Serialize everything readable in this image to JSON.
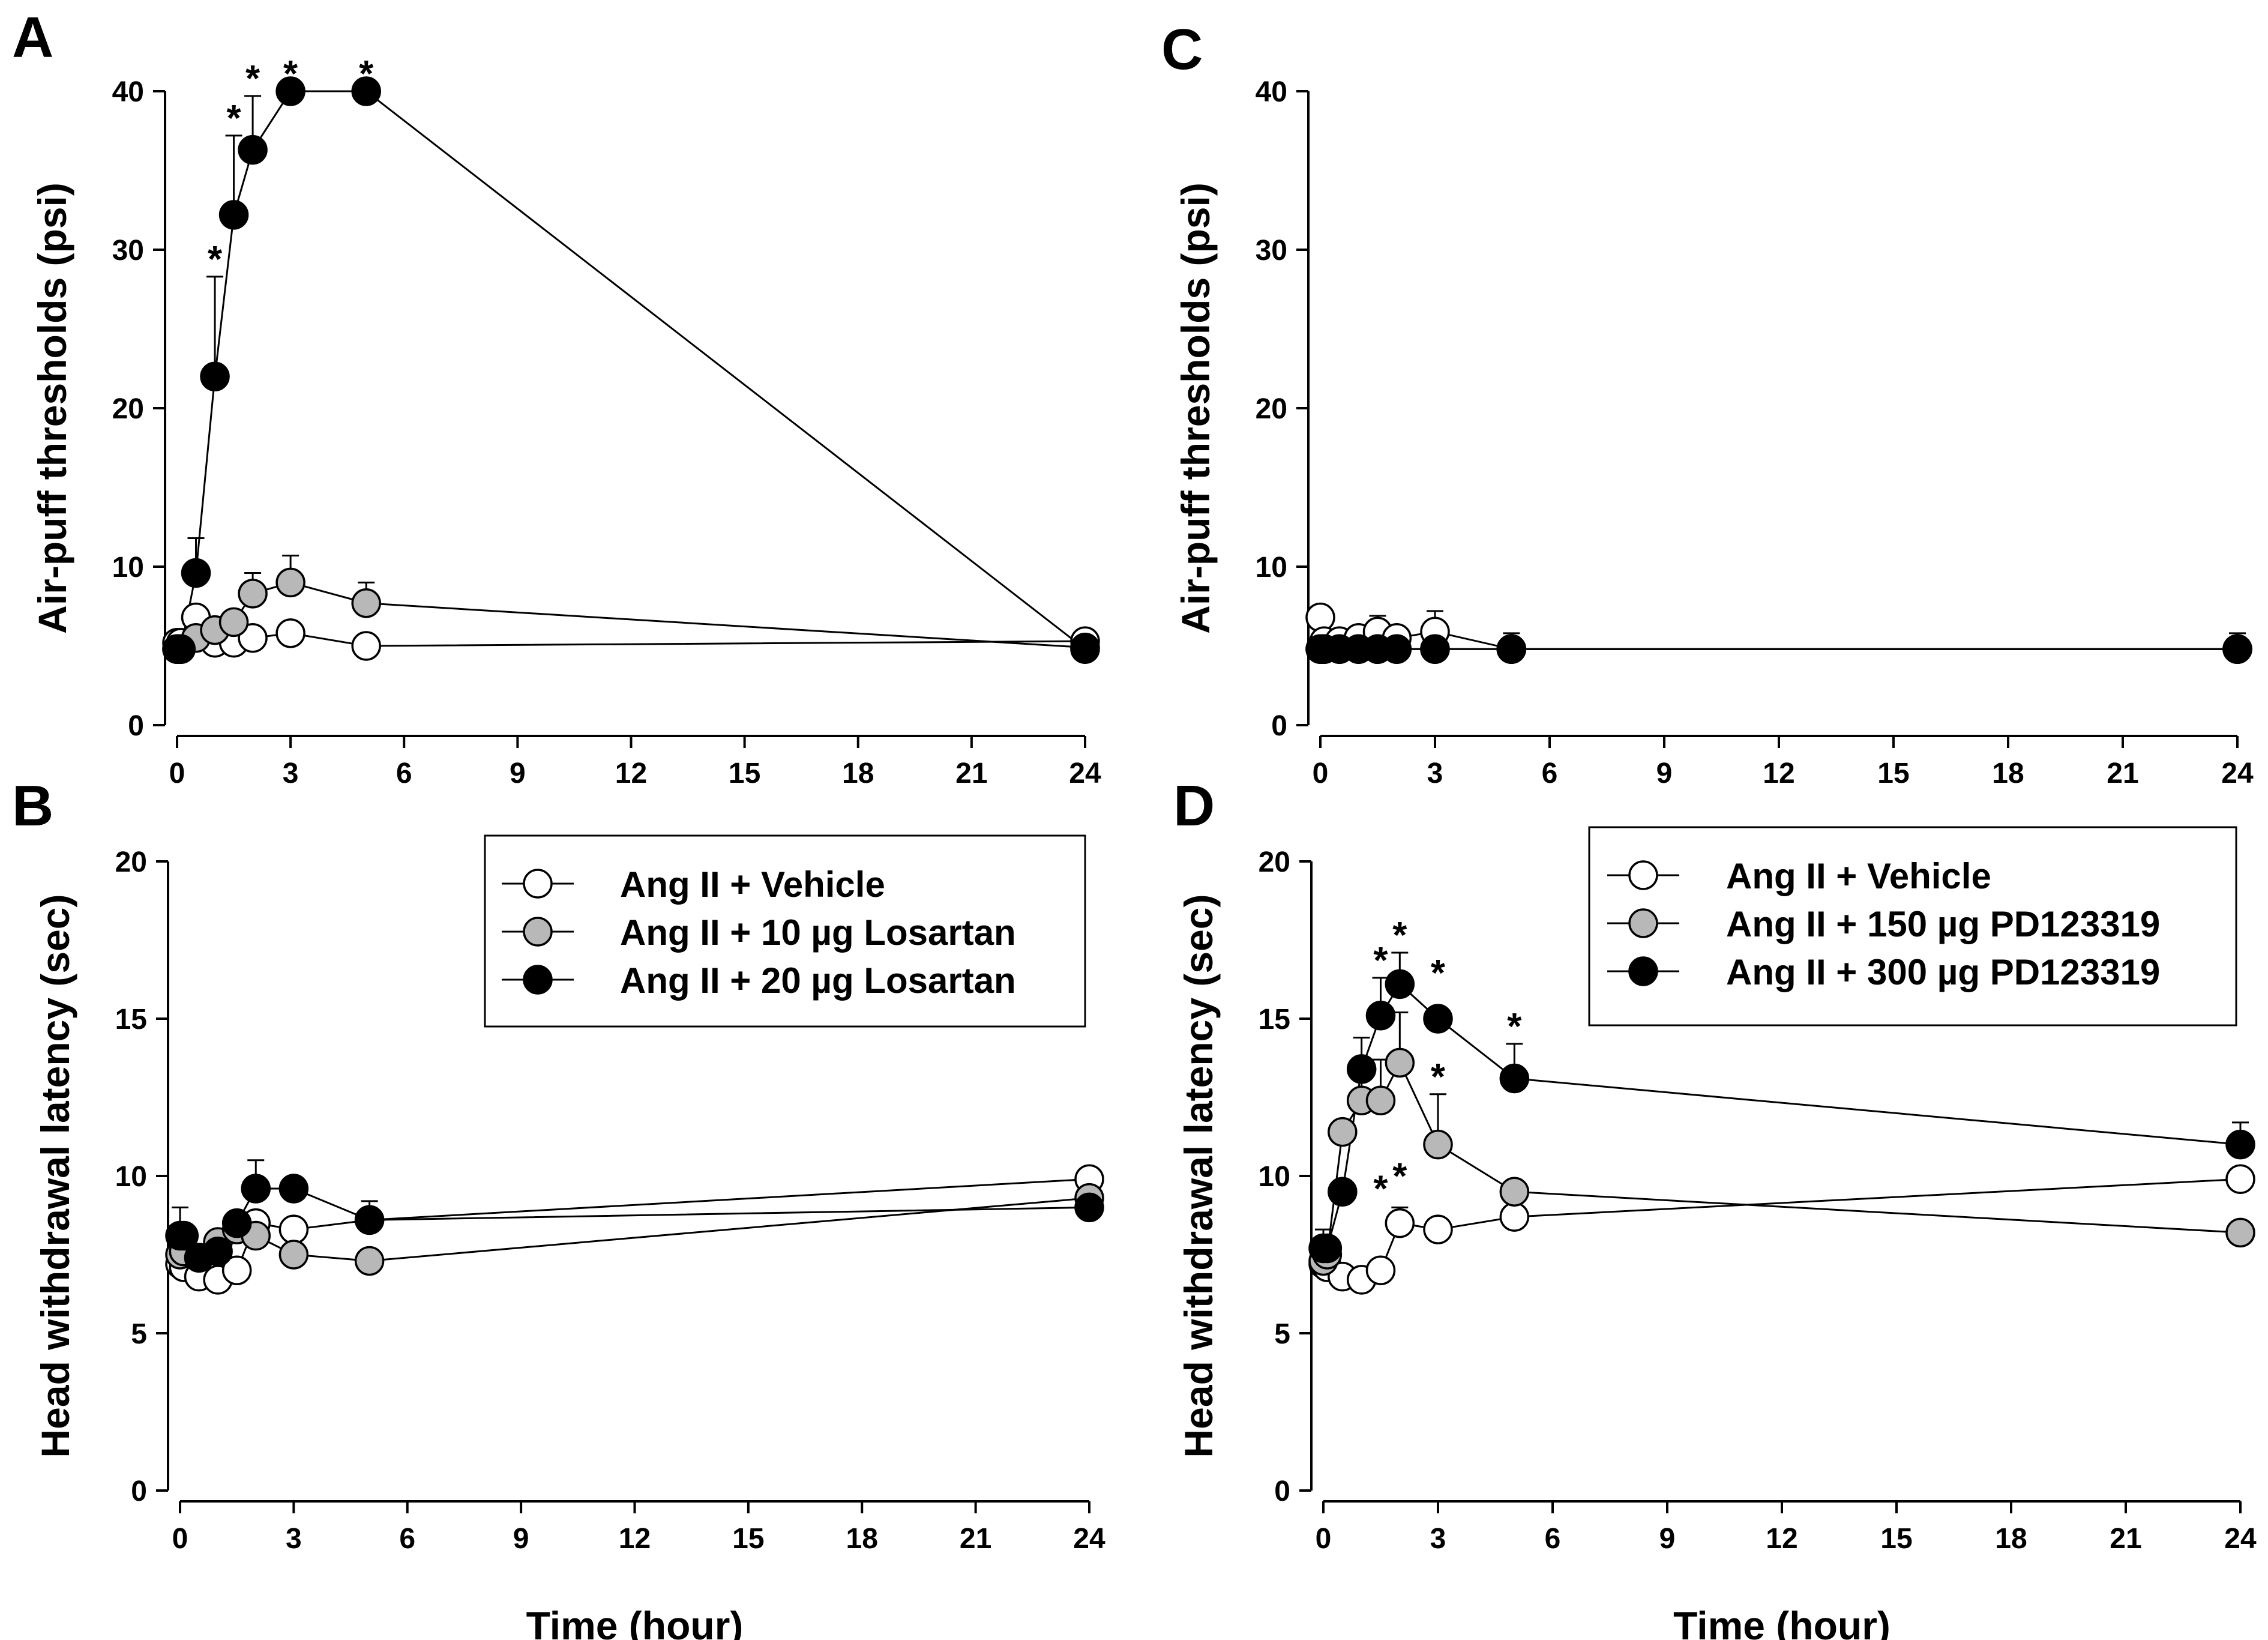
{
  "chart_data": [
    {
      "panel": "A",
      "type": "line",
      "ylabel": "Air-puff thresholds (psi)",
      "xlabel": "",
      "xlim": [
        0,
        24
      ],
      "ylim": [
        0,
        40
      ],
      "xticks": [
        0,
        3,
        6,
        9,
        12,
        15,
        18,
        21,
        24
      ],
      "yticks": [
        0,
        10,
        20,
        30,
        40
      ],
      "series": [
        {
          "name": "Ang II + Vehicle",
          "fill": "#ffffff",
          "x": [
            0,
            0.1,
            0.5,
            1,
            1.5,
            2,
            3,
            5,
            24
          ],
          "values": [
            5.2,
            5.2,
            6.8,
            5.2,
            5.2,
            5.5,
            5.8,
            5.0,
            5.3
          ],
          "errors": [
            0,
            0,
            0,
            0,
            0,
            0,
            0,
            0,
            0
          ]
        },
        {
          "name": "Ang II + 10 µg Losartan",
          "fill": "#b8b8b8",
          "x": [
            0,
            0.1,
            0.5,
            1,
            1.5,
            2,
            3,
            5,
            24
          ],
          "values": [
            4.8,
            4.8,
            5.5,
            6.0,
            6.5,
            8.3,
            9.0,
            7.7,
            4.9
          ],
          "errors": [
            0,
            0,
            0,
            0,
            0,
            1.3,
            1.7,
            1.3,
            0
          ]
        },
        {
          "name": "Ang II + 20 µg Losartan",
          "fill": "#000000",
          "x": [
            0,
            0.1,
            0.5,
            1,
            1.5,
            2,
            3,
            5,
            24
          ],
          "values": [
            4.8,
            4.8,
            9.6,
            22.0,
            32.2,
            36.3,
            40.0,
            40.0,
            4.8
          ],
          "errors": [
            0,
            0,
            2.2,
            6.3,
            5.0,
            3.4,
            0,
            0,
            0
          ]
        }
      ],
      "significance": [
        {
          "x": 1,
          "y": 28.3,
          "label": "*"
        },
        {
          "x": 1.5,
          "y": 37.2,
          "label": "*"
        },
        {
          "x": 2,
          "y": 39.7,
          "label": "*"
        },
        {
          "x": 3,
          "y": 40.0,
          "label": "*"
        },
        {
          "x": 5,
          "y": 40.0,
          "label": "*"
        }
      ]
    },
    {
      "panel": "B",
      "type": "line",
      "ylabel": "Head withdrawal latency (sec)",
      "xlabel": "Time (hour)",
      "xlim": [
        0,
        24
      ],
      "ylim": [
        0,
        20
      ],
      "xticks": [
        0,
        3,
        6,
        9,
        12,
        15,
        18,
        21,
        24
      ],
      "yticks": [
        0,
        5,
        10,
        15,
        20
      ],
      "legend": [
        "Ang II + Vehicle",
        "Ang II + 10 µg Losartan",
        "Ang II + 20 µg Losartan"
      ],
      "series": [
        {
          "name": "Ang II + Vehicle",
          "fill": "#ffffff",
          "x": [
            0,
            0.1,
            0.5,
            1,
            1.5,
            2,
            3,
            5,
            24
          ],
          "values": [
            7.2,
            7.1,
            6.8,
            6.7,
            7.0,
            8.5,
            8.3,
            8.6,
            9.9
          ],
          "errors": [
            0,
            0,
            0,
            0,
            0,
            0,
            0,
            0,
            0
          ]
        },
        {
          "name": "Ang II + 10 µg Losartan",
          "fill": "#b8b8b8",
          "x": [
            0,
            0.1,
            0.5,
            1,
            1.5,
            2,
            3,
            5,
            24
          ],
          "values": [
            7.5,
            7.6,
            7.4,
            7.9,
            8.3,
            8.1,
            7.5,
            7.3,
            9.3
          ],
          "errors": [
            0,
            0,
            0,
            0,
            0,
            0,
            0,
            0,
            0
          ]
        },
        {
          "name": "Ang II + 20 µg Losartan",
          "fill": "#000000",
          "x": [
            0,
            0.1,
            0.5,
            1,
            1.5,
            2,
            3,
            5,
            24
          ],
          "values": [
            8.1,
            8.1,
            7.4,
            7.6,
            8.5,
            9.6,
            9.6,
            8.6,
            9.0
          ],
          "errors": [
            0.9,
            0,
            0,
            0,
            0,
            0.9,
            0,
            0.6,
            0
          ]
        }
      ]
    },
    {
      "panel": "C",
      "type": "line",
      "ylabel": "Air-puff thresholds (psi)",
      "xlabel": "",
      "xlim": [
        0,
        24
      ],
      "ylim": [
        0,
        40
      ],
      "xticks": [
        0,
        3,
        6,
        9,
        12,
        15,
        18,
        21,
        24
      ],
      "yticks": [
        0,
        10,
        20,
        30,
        40
      ],
      "series": [
        {
          "name": "Ang II + Vehicle",
          "fill": "#ffffff",
          "x": [
            0,
            0.1,
            0.5,
            1,
            1.5,
            2,
            3,
            5,
            24
          ],
          "values": [
            6.8,
            5.3,
            5.3,
            5.5,
            5.9,
            5.5,
            5.9,
            4.8,
            4.8
          ],
          "errors": [
            0,
            0,
            0,
            0,
            1.0,
            0,
            1.3,
            1.0,
            1.0
          ]
        },
        {
          "name": "Ang II + 150 µg PD123319",
          "fill": "#b8b8b8",
          "x": [
            0,
            0.1,
            0.5,
            1,
            1.5,
            2,
            3,
            5,
            24
          ],
          "values": [
            4.8,
            4.8,
            4.8,
            4.8,
            4.8,
            4.8,
            4.8,
            4.8,
            4.8
          ],
          "errors": [
            0,
            0,
            0,
            0,
            0,
            0,
            0,
            0,
            0
          ]
        },
        {
          "name": "Ang II + 300 µg PD123319",
          "fill": "#000000",
          "x": [
            0,
            0.1,
            0.5,
            1,
            1.5,
            2,
            3,
            5,
            24
          ],
          "values": [
            4.8,
            4.8,
            4.8,
            4.8,
            4.8,
            4.8,
            4.8,
            4.8,
            4.8
          ],
          "errors": [
            0,
            0,
            0,
            0,
            0,
            0,
            0,
            0,
            0
          ]
        }
      ]
    },
    {
      "panel": "D",
      "type": "line",
      "ylabel": "Head withdrawal latency (sec)",
      "xlabel": "Time (hour)",
      "xlim": [
        0,
        24
      ],
      "ylim": [
        0,
        20
      ],
      "xticks": [
        0,
        3,
        6,
        9,
        12,
        15,
        18,
        21,
        24
      ],
      "yticks": [
        0,
        5,
        10,
        15,
        20
      ],
      "legend": [
        "Ang II + Vehicle",
        "Ang II + 150 µg PD123319",
        "Ang II + 300 µg PD123319"
      ],
      "series": [
        {
          "name": "Ang II + Vehicle",
          "fill": "#ffffff",
          "x": [
            0,
            0.1,
            0.5,
            1,
            1.5,
            2,
            3,
            5,
            24
          ],
          "values": [
            7.2,
            7.1,
            6.8,
            6.7,
            7.0,
            8.5,
            8.3,
            8.7,
            9.9
          ],
          "errors": [
            0,
            0,
            0,
            0,
            0,
            0.5,
            0,
            0,
            0
          ]
        },
        {
          "name": "Ang II + 150 µg PD123319",
          "fill": "#b8b8b8",
          "x": [
            0,
            0.1,
            0.5,
            1,
            1.5,
            2,
            3,
            5,
            24
          ],
          "values": [
            7.3,
            7.5,
            11.4,
            12.4,
            12.4,
            13.6,
            11.0,
            9.5,
            8.2
          ],
          "errors": [
            0,
            0,
            0,
            1.0,
            1.3,
            1.6,
            1.6,
            0,
            0
          ]
        },
        {
          "name": "Ang II + 300 µg PD123319",
          "fill": "#000000",
          "x": [
            0,
            0.1,
            0.5,
            1,
            1.5,
            2,
            3,
            5,
            24
          ],
          "values": [
            7.7,
            7.7,
            9.5,
            13.4,
            15.1,
            16.1,
            15.0,
            13.1,
            11.0
          ],
          "errors": [
            0.6,
            0,
            0,
            1.0,
            1.2,
            1.0,
            0,
            1.1,
            0.7
          ]
        }
      ],
      "significance": [
        {
          "x": 1.5,
          "y": 16.3,
          "label": "*"
        },
        {
          "x": 2,
          "y": 17.1,
          "label": "*"
        },
        {
          "x": 3,
          "y": 15.9,
          "label": "*"
        },
        {
          "x": 5,
          "y": 14.2,
          "label": "*"
        },
        {
          "x": 1.5,
          "y": 10.3,
          "label": "*",
          "below": true
        },
        {
          "x": 2,
          "y": 10.7,
          "label": "*",
          "below": true
        },
        {
          "x": 3,
          "y": 12.6,
          "label": "*"
        }
      ]
    }
  ]
}
